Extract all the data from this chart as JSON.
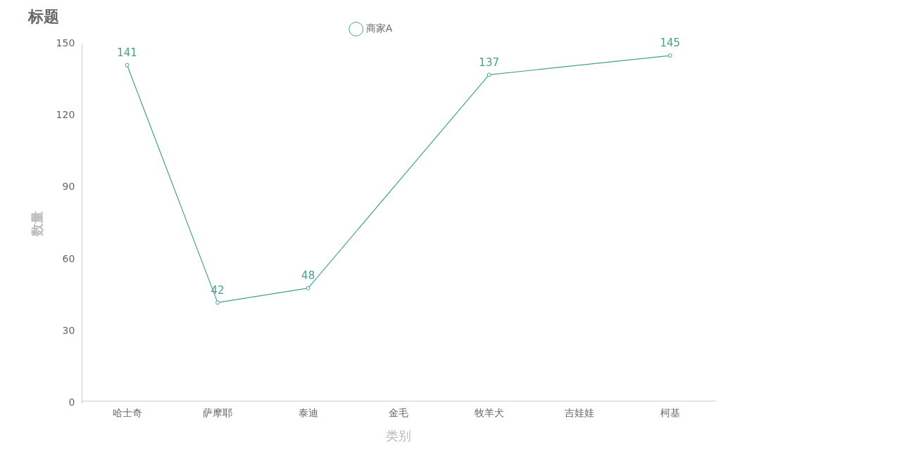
{
  "chart_data": {
    "type": "line",
    "title": "标题",
    "xlabel": "类别",
    "ylabel": "数量",
    "categories": [
      "哈士奇",
      "萨摩耶",
      "泰迪",
      "金毛",
      "牧羊犬",
      "吉娃娃",
      "柯基"
    ],
    "series": [
      {
        "name": "商家A",
        "color": "#48a08c",
        "values": [
          141,
          42,
          48,
          null,
          137,
          null,
          145
        ]
      }
    ],
    "ylim": [
      0,
      150
    ],
    "yticks": [
      0,
      30,
      60,
      90,
      120,
      150
    ],
    "grid": false,
    "legend": "top",
    "marker": "circle",
    "line_style": "solid",
    "data_labels": true
  }
}
